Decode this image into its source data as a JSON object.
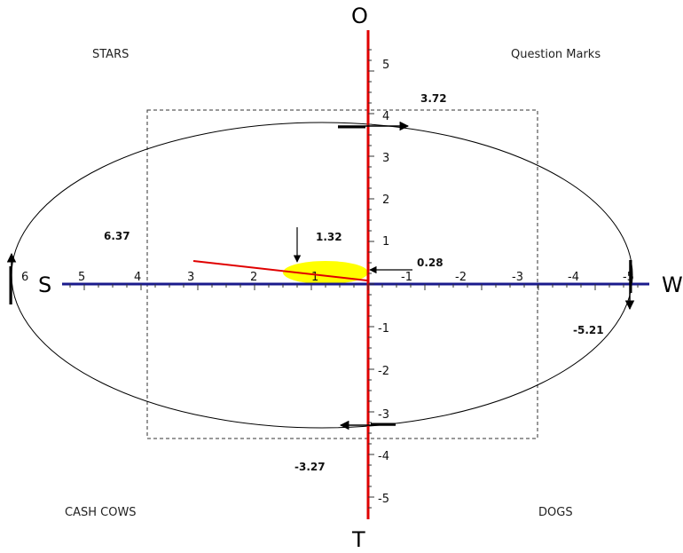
{
  "axes": {
    "top": "O",
    "bottom": "T",
    "left": "S",
    "right": "W",
    "x_tick_labels": [
      "6",
      "5",
      "4",
      "3",
      "2",
      "1",
      "-1",
      "-2",
      "-3",
      "-4",
      "-5"
    ],
    "y_tick_labels": [
      "5",
      "4",
      "3",
      "2",
      "1",
      "-1",
      "-2",
      "-3",
      "-4",
      "-5"
    ]
  },
  "quadrants": {
    "top_left": "STARS",
    "top_right": "Question Marks",
    "bottom_left": "CASH COWS",
    "bottom_right": "DOGS"
  },
  "values": {
    "o": "3.72",
    "s": "6.37",
    "w": "-5.21",
    "t": "-3.27",
    "center_x": "1.32",
    "center_y": "0.28"
  },
  "colors": {
    "horizontal_axis": "#1a1a8c",
    "vertical_axis": "#e00000",
    "direction_line": "#e00000",
    "highlight": "#ffff00"
  }
}
